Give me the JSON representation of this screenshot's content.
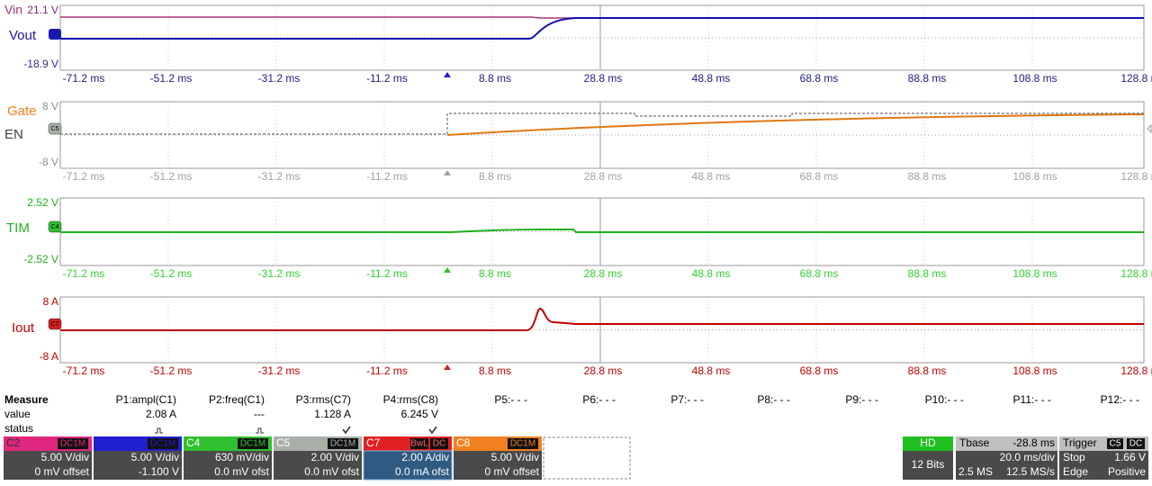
{
  "time_labels": [
    "-71.2 ms",
    "-51.2 ms",
    "-31.2 ms",
    "-11.2 ms",
    "8.8 ms",
    "28.8 ms",
    "48.8 ms",
    "68.8 ms",
    "88.8 ms",
    "108.8 ms",
    "128.8 ms"
  ],
  "panels": [
    {
      "names": [
        "Vin",
        "Vout"
      ],
      "scale_top": "21.1 V",
      "scale_bottom": "-18.9 V"
    },
    {
      "names": [
        "Gate",
        "EN"
      ],
      "scale_top": "8 V",
      "scale_bottom": "-8 V",
      "marker": "C5"
    },
    {
      "names": [
        "TIM"
      ],
      "scale_top": "2.52 V",
      "scale_bottom": "-2.52 V",
      "marker": "C4"
    },
    {
      "names": [
        "Iout"
      ],
      "scale_top": "8 A",
      "scale_bottom": "-8 A",
      "marker": "C7"
    }
  ],
  "measure": {
    "title": "Measure",
    "row_labels": [
      "value",
      "status"
    ],
    "params": [
      "P1:ampl(C1)",
      "P2:freq(C1)",
      "P3:rms(C7)",
      "P4:rms(C8)",
      "P5:- - -",
      "P6:- - -",
      "P7:- - -",
      "P8:- - -",
      "P9:- - -",
      "P10:- - -",
      "P11:- - -",
      "P12:- - -"
    ],
    "values": [
      "2.08 A",
      "---",
      "1.128 A",
      "6.245 V"
    ]
  },
  "channels": [
    {
      "name": "C2",
      "coupling": [
        "DC1M"
      ],
      "scale": "5.00 V/div",
      "offset": "0 mV offset"
    },
    {
      "coupling": [
        "DC1M"
      ],
      "scale": "5.00 V/div",
      "offset": "-1.100 V"
    },
    {
      "name": "C4",
      "coupling": [
        "DC1M"
      ],
      "scale": "630 mV/div",
      "offset": "0.0 mV ofst"
    },
    {
      "name": "C5",
      "coupling": [
        "DC1M"
      ],
      "scale": "2.00 V/div",
      "offset": "0.0 mV ofst"
    },
    {
      "name": "C7",
      "coupling": [
        "BwL",
        "DC"
      ],
      "scale": "2.00 A/div",
      "offset": "0.0 mA ofst"
    },
    {
      "name": "C8",
      "coupling": [
        "DC1M"
      ],
      "scale": "5.00 V/div",
      "offset": "0 mV offset"
    }
  ],
  "hd": {
    "label": "HD",
    "bits": "12 Bits"
  },
  "tbase": {
    "label": "Tbase",
    "delay": "-28.8 ms",
    "scale": "20.0 ms/div",
    "samples": "2.5 MS",
    "rate": "12.5 MS/s"
  },
  "trigger": {
    "label": "Trigger",
    "source": "C5",
    "coupling": "DC",
    "mode": "Stop",
    "level": "1.66 V",
    "type": "Edge",
    "slope": "Positive"
  }
}
